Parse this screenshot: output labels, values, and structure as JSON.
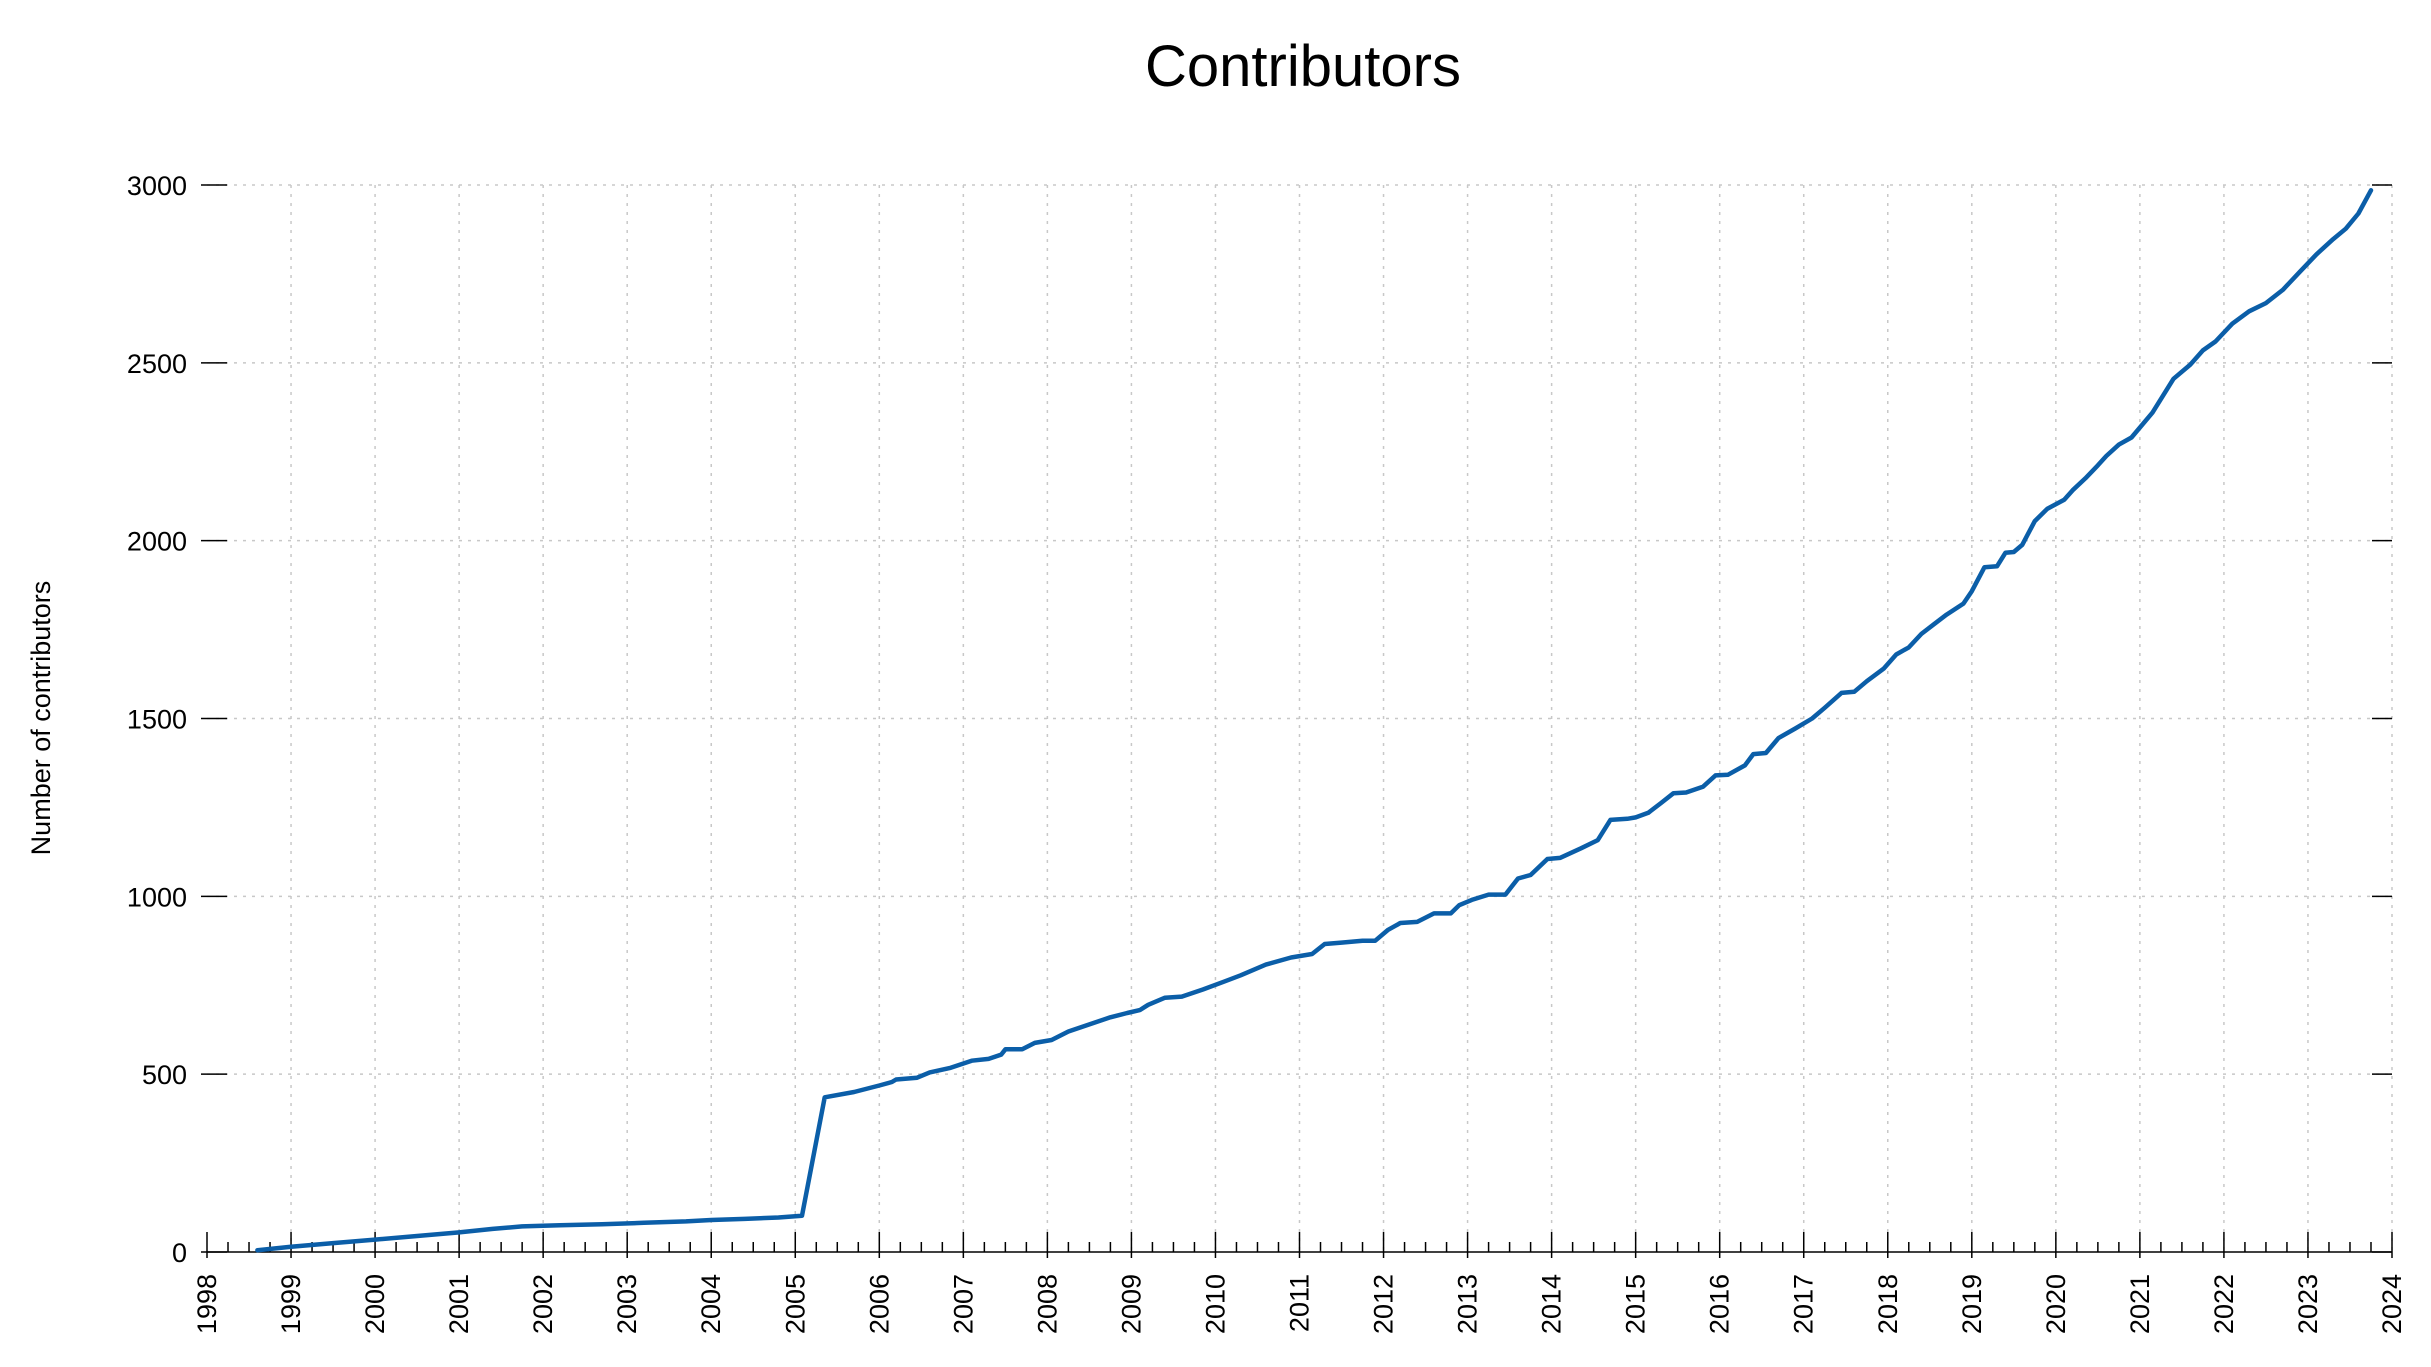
{
  "chart_data": {
    "type": "line",
    "title": "Contributors",
    "xlabel": "",
    "ylabel": "Number of contributors",
    "xlim": [
      1998,
      2024
    ],
    "ylim": [
      0,
      3000
    ],
    "x_ticks": [
      "1998",
      "1999",
      "2000",
      "2001",
      "2002",
      "2003",
      "2004",
      "2005",
      "2006",
      "2007",
      "2008",
      "2009",
      "2010",
      "2011",
      "2012",
      "2013",
      "2014",
      "2015",
      "2016",
      "2017",
      "2018",
      "2019",
      "2020",
      "2021",
      "2022",
      "2023",
      "2024"
    ],
    "y_ticks": [
      "0",
      "500",
      "1000",
      "1500",
      "2000",
      "2500",
      "3000"
    ],
    "grid": true,
    "line_color": "#0b5ea8",
    "series": [
      {
        "x": [
          1998.6,
          1999.0,
          1999.5,
          2000.0,
          2000.5,
          2001.0,
          2001.4,
          2001.75,
          2002.2,
          2002.7,
          2003.2,
          2003.7,
          2004.0,
          2004.4,
          2004.8,
          2005.08,
          2005.35,
          2005.7,
          2006.0,
          2006.15,
          2006.2,
          2006.45,
          2006.6,
          2006.85,
          2007.1,
          2007.3,
          2007.45,
          2007.5,
          2007.7,
          2007.85,
          2008.05,
          2008.25,
          2008.5,
          2008.75,
          2008.95,
          2009.1,
          2009.2,
          2009.4,
          2009.6,
          2009.85,
          2010.1,
          2010.3,
          2010.6,
          2010.9,
          2011.15,
          2011.3,
          2011.5,
          2011.75,
          2011.9,
          2012.05,
          2012.2,
          2012.4,
          2012.6,
          2012.8,
          2012.9,
          2013.05,
          2013.25,
          2013.45,
          2013.6,
          2013.75,
          2013.95,
          2014.1,
          2014.35,
          2014.55,
          2014.7,
          2014.9,
          2015.0,
          2015.15,
          2015.3,
          2015.45,
          2015.6,
          2015.8,
          2015.95,
          2016.1,
          2016.3,
          2016.4,
          2016.55,
          2016.7,
          2016.9,
          2017.1,
          2017.25,
          2017.45,
          2017.6,
          2017.75,
          2017.95,
          2018.1,
          2018.25,
          2018.4,
          2018.55,
          2018.7,
          2018.9,
          2019.0,
          2019.15,
          2019.3,
          2019.4,
          2019.5,
          2019.6,
          2019.75,
          2019.9,
          2020.1,
          2020.2,
          2020.35,
          2020.5,
          2020.6,
          2020.75,
          2020.9,
          2021.15,
          2021.4,
          2021.6,
          2021.75,
          2021.9,
          2022.1,
          2022.3,
          2022.5,
          2022.7,
          2022.9,
          2023.1,
          2023.3,
          2023.45,
          2023.6,
          2023.75
        ],
        "y": [
          5,
          15,
          25,
          35,
          45,
          55,
          65,
          72,
          75,
          78,
          82,
          86,
          90,
          93,
          97,
          102,
          435,
          450,
          468,
          478,
          485,
          490,
          505,
          518,
          538,
          543,
          555,
          570,
          570,
          588,
          596,
          620,
          640,
          660,
          672,
          680,
          695,
          715,
          718,
          738,
          760,
          778,
          808,
          828,
          838,
          866,
          870,
          875,
          875,
          905,
          925,
          928,
          952,
          952,
          975,
          990,
          1005,
          1005,
          1050,
          1060,
          1105,
          1108,
          1135,
          1158,
          1215,
          1218,
          1222,
          1235,
          1262,
          1290,
          1292,
          1308,
          1340,
          1342,
          1368,
          1400,
          1403,
          1445,
          1472,
          1500,
          1530,
          1572,
          1575,
          1605,
          1640,
          1680,
          1700,
          1738,
          1765,
          1792,
          1823,
          1858,
          1925,
          1928,
          1966,
          1968,
          1988,
          2055,
          2090,
          2115,
          2142,
          2175,
          2212,
          2238,
          2270,
          2290,
          2360,
          2455,
          2495,
          2535,
          2560,
          2610,
          2645,
          2668,
          2705,
          2755,
          2805,
          2848,
          2877,
          2920,
          2985
        ]
      }
    ]
  }
}
